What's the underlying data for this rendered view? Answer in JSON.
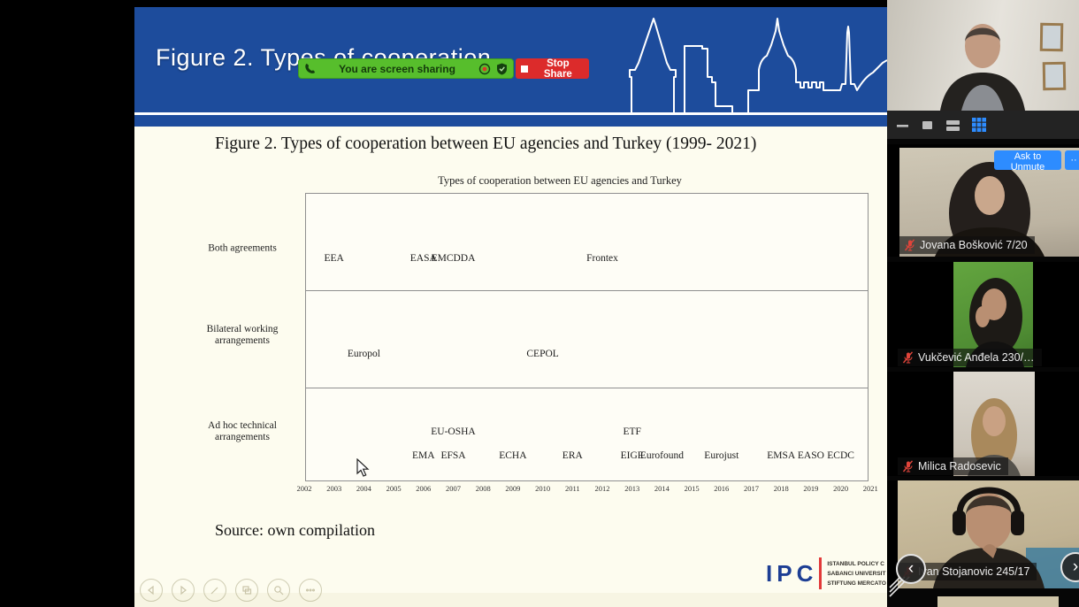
{
  "share": {
    "banner_text": "You are screen sharing",
    "stop_label": "Stop Share",
    "icons": [
      "phone-icon",
      "record-indicator-icon",
      "shield-check-icon",
      "stop-square-icon"
    ]
  },
  "slide": {
    "header_title": "Figure 2. Types of cooperation",
    "figure_caption": "Figure 2. Types of cooperation between EU agencies and Turkey (1999- 2021)",
    "source_text": "Source: own compilation",
    "logo": {
      "abbr": "IPC",
      "lines": [
        "ISTANBUL POLICY C",
        "SABANCI UNIVERSIT",
        "STIFTUNG MERCATO"
      ]
    },
    "toolbar_icons": [
      "previous-slide-icon",
      "next-slide-icon",
      "pen-icon",
      "slide-sorter-icon",
      "zoom-icon",
      "more-icon"
    ]
  },
  "chart_data": {
    "type": "scatter",
    "title": "Types of cooperation between EU agencies and Turkey",
    "xlabel": "",
    "ylabel": "",
    "x_range": [
      2002,
      2021
    ],
    "grid": false,
    "rows": [
      "Both agreements",
      "Bilateral working arrangements",
      "Ad hoc technical arrangements"
    ],
    "x_ticks": [
      2002,
      2003,
      2004,
      2005,
      2006,
      2007,
      2008,
      2009,
      2010,
      2011,
      2012,
      2013,
      2014,
      2015,
      2016,
      2017,
      2018,
      2019,
      2020,
      2021
    ],
    "items": [
      {
        "label": "EEA",
        "row": "Both agreements",
        "year": 2003
      },
      {
        "label": "EASA",
        "row": "Both agreements",
        "year": 2006
      },
      {
        "label": "EMCDDA",
        "row": "Both agreements",
        "year": 2007
      },
      {
        "label": "Frontex",
        "row": "Both agreements",
        "year": 2012
      },
      {
        "label": "Europol",
        "row": "Bilateral working arrangements",
        "year": 2004
      },
      {
        "label": "CEPOL",
        "row": "Bilateral working arrangements",
        "year": 2010
      },
      {
        "label": "EU-OSHA",
        "row": "Ad hoc technical arrangements",
        "year": 2007,
        "tier": "upper"
      },
      {
        "label": "ETF",
        "row": "Ad hoc technical arrangements",
        "year": 2013,
        "tier": "upper"
      },
      {
        "label": "EMA",
        "row": "Ad hoc technical arrangements",
        "year": 2006
      },
      {
        "label": "EFSA",
        "row": "Ad hoc technical arrangements",
        "year": 2007
      },
      {
        "label": "ECHA",
        "row": "Ad hoc technical arrangements",
        "year": 2009
      },
      {
        "label": "ERA",
        "row": "Ad hoc technical arrangements",
        "year": 2011
      },
      {
        "label": "EIGE",
        "row": "Ad hoc technical arrangements",
        "year": 2013
      },
      {
        "label": "Eurofound",
        "row": "Ad hoc technical arrangements",
        "year": 2014
      },
      {
        "label": "Eurojust",
        "row": "Ad hoc technical arrangements",
        "year": 2016
      },
      {
        "label": "EMSA",
        "row": "Ad hoc technical arrangements",
        "year": 2018
      },
      {
        "label": "EASO",
        "row": "Ad hoc technical arrangements",
        "year": 2019
      },
      {
        "label": "ECDC",
        "row": "Ad hoc technical arrangements",
        "year": 2020
      }
    ]
  },
  "sidebar": {
    "view_controls": [
      "minimize-icon",
      "speaker-view-icon",
      "strip-view-icon",
      "gallery-view-icon"
    ],
    "ask_to_unmute_label": "Ask to Unmute",
    "more_label": "··",
    "nav": {
      "prev": "‹",
      "next": "›"
    },
    "participants": [
      {
        "name": "Jovana Bošković 7/20",
        "muted": true
      },
      {
        "name": "Vukčević Anđela 230/…",
        "muted": true
      },
      {
        "name": "Milica Radosevic",
        "muted": true
      },
      {
        "name": "Ivan Stojanovic 245/17",
        "muted": true
      }
    ]
  },
  "colors": {
    "header_blue": "#1d4c9c",
    "slide_cream": "#fdfcef",
    "share_green": "#57be2c",
    "stop_red": "#dc2b2b",
    "zoom_blue": "#2d8cff",
    "mic_muted_red": "#e0443a",
    "ipc_blue": "#1d3e94",
    "ipc_red": "#e23a3a"
  }
}
